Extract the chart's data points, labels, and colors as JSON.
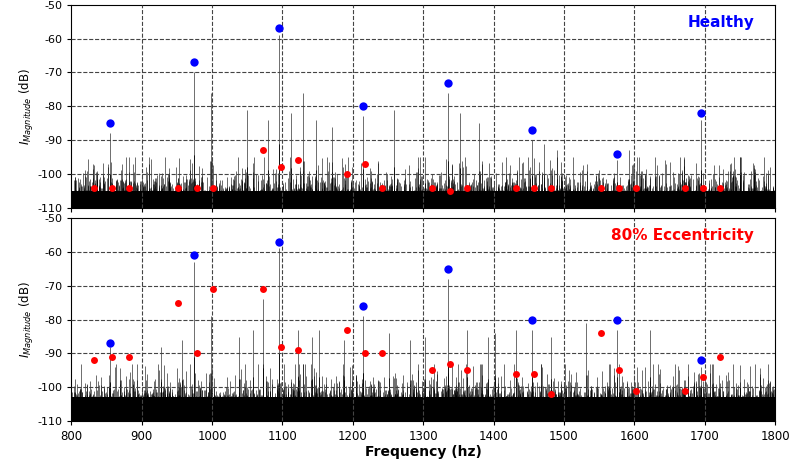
{
  "title_top": "Healthy",
  "title_bottom": "80% Eccentricity",
  "xlabel": "Frequency (hz)",
  "xlim": [
    800,
    1800
  ],
  "ylim": [
    -110,
    -50
  ],
  "yticks": [
    -110,
    -100,
    -90,
    -80,
    -70,
    -60,
    -50
  ],
  "xticks": [
    800,
    900,
    1000,
    1100,
    1200,
    1300,
    1400,
    1500,
    1600,
    1700,
    1800
  ],
  "vgrid_x": [
    900,
    1000,
    1100,
    1200,
    1300,
    1400,
    1500,
    1600,
    1700
  ],
  "hgrid_y": [
    -100,
    -90,
    -80,
    -70,
    -60
  ],
  "blue_color": "#0000FF",
  "red_color": "#FF0000",
  "healthy_blue_dots": [
    [
      855,
      -85
    ],
    [
      975,
      -67
    ],
    [
      1095,
      -57
    ],
    [
      1215,
      -80
    ],
    [
      1335,
      -73
    ],
    [
      1455,
      -87
    ],
    [
      1575,
      -94
    ],
    [
      1695,
      -82
    ]
  ],
  "healthy_red_dots": [
    [
      832,
      -104
    ],
    [
      858,
      -104
    ],
    [
      882,
      -104
    ],
    [
      952,
      -104
    ],
    [
      978,
      -104
    ],
    [
      1002,
      -104
    ],
    [
      1072,
      -93
    ],
    [
      1098,
      -98
    ],
    [
      1122,
      -96
    ],
    [
      1192,
      -100
    ],
    [
      1218,
      -97
    ],
    [
      1242,
      -104
    ],
    [
      1312,
      -104
    ],
    [
      1338,
      -105
    ],
    [
      1362,
      -104
    ],
    [
      1432,
      -104
    ],
    [
      1458,
      -104
    ],
    [
      1482,
      -104
    ],
    [
      1552,
      -104
    ],
    [
      1578,
      -104
    ],
    [
      1602,
      -104
    ],
    [
      1672,
      -104
    ],
    [
      1698,
      -104
    ],
    [
      1722,
      -104
    ]
  ],
  "ecc_blue_dots": [
    [
      855,
      -87
    ],
    [
      975,
      -61
    ],
    [
      1095,
      -57
    ],
    [
      1215,
      -76
    ],
    [
      1335,
      -65
    ],
    [
      1455,
      -80
    ],
    [
      1575,
      -80
    ],
    [
      1695,
      -92
    ]
  ],
  "ecc_red_dots": [
    [
      832,
      -92
    ],
    [
      858,
      -91
    ],
    [
      882,
      -91
    ],
    [
      952,
      -75
    ],
    [
      978,
      -90
    ],
    [
      1002,
      -71
    ],
    [
      1072,
      -71
    ],
    [
      1098,
      -88
    ],
    [
      1122,
      -89
    ],
    [
      1192,
      -83
    ],
    [
      1218,
      -90
    ],
    [
      1242,
      -90
    ],
    [
      1312,
      -95
    ],
    [
      1338,
      -93
    ],
    [
      1362,
      -95
    ],
    [
      1432,
      -96
    ],
    [
      1458,
      -96
    ],
    [
      1482,
      -102
    ],
    [
      1552,
      -84
    ],
    [
      1578,
      -95
    ],
    [
      1602,
      -101
    ],
    [
      1672,
      -101
    ],
    [
      1698,
      -97
    ],
    [
      1722,
      -91
    ]
  ],
  "main_spikes_healthy": [
    [
      855,
      -88
    ],
    [
      975,
      -70
    ],
    [
      998,
      -76
    ],
    [
      1050,
      -81
    ],
    [
      1080,
      -84
    ],
    [
      1095,
      -59
    ],
    [
      1112,
      -82
    ],
    [
      1130,
      -76
    ],
    [
      1148,
      -84
    ],
    [
      1170,
      -86
    ],
    [
      1215,
      -83
    ],
    [
      1258,
      -81
    ],
    [
      1335,
      -76
    ],
    [
      1352,
      -82
    ],
    [
      1380,
      -85
    ],
    [
      1455,
      -90
    ],
    [
      1472,
      -91
    ],
    [
      1490,
      -93
    ],
    [
      1575,
      -96
    ],
    [
      1592,
      -93
    ],
    [
      1695,
      -84
    ]
  ],
  "main_spikes_ecc": [
    [
      855,
      -88
    ],
    [
      928,
      -88
    ],
    [
      958,
      -86
    ],
    [
      975,
      -63
    ],
    [
      998,
      -79
    ],
    [
      1038,
      -85
    ],
    [
      1058,
      -83
    ],
    [
      1072,
      -74
    ],
    [
      1095,
      -59
    ],
    [
      1122,
      -83
    ],
    [
      1142,
      -85
    ],
    [
      1152,
      -83
    ],
    [
      1187,
      -86
    ],
    [
      1215,
      -79
    ],
    [
      1252,
      -84
    ],
    [
      1282,
      -86
    ],
    [
      1302,
      -85
    ],
    [
      1335,
      -68
    ],
    [
      1362,
      -83
    ],
    [
      1392,
      -85
    ],
    [
      1402,
      -84
    ],
    [
      1432,
      -83
    ],
    [
      1455,
      -83
    ],
    [
      1482,
      -85
    ],
    [
      1532,
      -81
    ],
    [
      1575,
      -83
    ],
    [
      1622,
      -83
    ],
    [
      1695,
      -94
    ]
  ],
  "noise_floor": -105,
  "noise_floor_ecc": -103,
  "dot_size": 5,
  "blue_dot_size": 6
}
